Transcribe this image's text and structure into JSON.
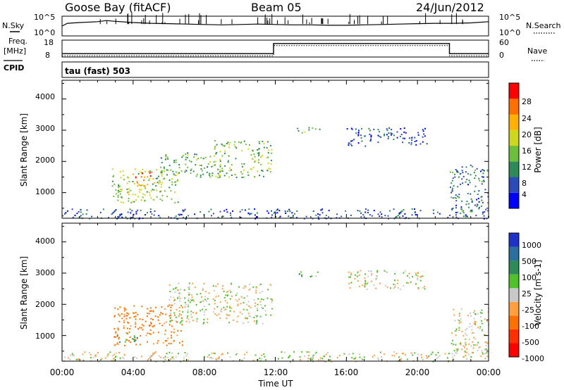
{
  "header": {
    "station": "Goose Bay (fitACF)",
    "beam": "Beam 05",
    "date": "24/Jun/2012"
  },
  "noise_panel": {
    "left_label": "N.Sky",
    "left_ticks": [
      "10^5",
      "10^0"
    ],
    "right_label": "N.Search",
    "right_ticks": [
      "10^5",
      "10^0"
    ]
  },
  "freq_panel": {
    "left_label_1": "Freq.",
    "left_label_2": "[MHz]",
    "left_ticks": [
      "18",
      "8"
    ],
    "right_label": "Nave",
    "right_ticks": [
      "60",
      "0"
    ]
  },
  "cpid_label": "CPID",
  "cpid_value": "tau (fast) 503",
  "power_panel": {
    "ylabel": "Slant Range [km]",
    "yticks": [
      "4000",
      "3000",
      "2000",
      "1000"
    ],
    "colorbar_label": "Power [dB]",
    "colorbar_ticks": [
      "28",
      "24",
      "20",
      "16",
      "12",
      "8",
      "4"
    ],
    "colorbar_colors": [
      "#0000ff",
      "#2b4cb8",
      "#2e8b57",
      "#6dbf3b",
      "#cfd61e",
      "#ffb000",
      "#ff7000",
      "#ff0000"
    ]
  },
  "velocity_panel": {
    "ylabel": "Slant Range [km]",
    "yticks": [
      "4000",
      "3000",
      "2000",
      "1000"
    ],
    "colorbar_label": "Velocity [m s-1]",
    "colorbar_ticks": [
      "1000",
      "500",
      "100",
      "25",
      "-25",
      "-100",
      "-500",
      "-1000"
    ],
    "colorbar_colors": [
      "#1e32c8",
      "#2a6f9e",
      "#2e8b57",
      "#4fc12a",
      "#c8c8c8",
      "#ffa040",
      "#ff7000",
      "#ff3000",
      "#ff0000"
    ]
  },
  "xaxis": {
    "ticks": [
      "00:00",
      "04:00",
      "08:00",
      "12:00",
      "16:00",
      "20:00",
      "00:00"
    ],
    "label": "Time UT"
  },
  "chart_data": [
    {
      "type": "line",
      "name": "noise",
      "ylabel_left": "N.Sky",
      "ylabel_right": "N.Search",
      "x_hours": [
        0,
        0.3,
        1,
        2,
        2.5,
        3,
        4,
        5,
        6,
        7,
        8,
        9,
        10,
        11,
        12,
        13,
        14,
        15,
        16,
        17,
        18,
        19,
        20,
        21,
        22,
        23,
        24
      ],
      "y_log10": [
        2.5,
        3.2,
        3.4,
        3.6,
        3.9,
        3.7,
        3.4,
        3.2,
        3.1,
        3.0,
        2.9,
        2.8,
        2.9,
        3.0,
        2.9,
        2.8,
        2.8,
        2.7,
        2.7,
        2.8,
        2.9,
        3.0,
        3.1,
        3.2,
        3.2,
        3.3,
        3.6
      ]
    },
    {
      "type": "line",
      "name": "frequency",
      "ylabel_left": "Freq. [MHz]",
      "ylabel_right": "Nave",
      "ylim_left": [
        8,
        18
      ],
      "ylim_right": [
        0,
        60
      ],
      "x_hours": [
        0,
        11.9,
        11.9,
        21.8,
        21.8,
        24
      ],
      "freq_mhz": [
        10,
        10,
        16,
        16,
        10,
        10
      ]
    },
    {
      "type": "heatmap",
      "name": "power",
      "xlabel": "Time UT",
      "ylabel": "Slant Range [km]",
      "xlim_hours": [
        0,
        24
      ],
      "ylim_km": [
        180,
        4600
      ],
      "colorbar": "Power [dB]",
      "regions": [
        {
          "t0": 2.8,
          "t1": 6.5,
          "r0": 700,
          "r1": 1800,
          "dB": 16
        },
        {
          "t0": 4.0,
          "t1": 5.2,
          "r0": 1200,
          "r1": 1700,
          "dB": 26
        },
        {
          "t0": 5.5,
          "t1": 8.5,
          "r0": 1500,
          "r1": 2300,
          "dB": 12
        },
        {
          "t0": 8.5,
          "t1": 11.8,
          "r0": 1500,
          "r1": 2700,
          "dB": 14
        },
        {
          "t0": 0,
          "t1": 24,
          "r0": 180,
          "r1": 500,
          "dB": 6
        },
        {
          "t0": 13.2,
          "t1": 14.5,
          "r0": 2900,
          "r1": 3100,
          "dB": 12
        },
        {
          "t0": 16.0,
          "t1": 20.5,
          "r0": 2500,
          "r1": 3100,
          "dB": 6
        },
        {
          "t0": 21.8,
          "t1": 24,
          "r0": 300,
          "r1": 1900,
          "dB": 8
        }
      ]
    },
    {
      "type": "heatmap",
      "name": "velocity",
      "xlabel": "Time UT",
      "ylabel": "Slant Range [km]",
      "xlim_hours": [
        0,
        24
      ],
      "ylim_km": [
        180,
        4600
      ],
      "colorbar": "Velocity [m s-1]",
      "regions": [
        {
          "t0": 2.8,
          "t1": 6.8,
          "r0": 700,
          "r1": 2000,
          "v": -150
        },
        {
          "t0": 3.0,
          "t1": 4.2,
          "r0": 800,
          "r1": 1100,
          "v": 100
        },
        {
          "t0": 6.0,
          "t1": 11.8,
          "r0": 1400,
          "r1": 2700,
          "v": 0
        },
        {
          "t0": 0,
          "t1": 24,
          "r0": 180,
          "r1": 500,
          "v": 0
        },
        {
          "t0": 13.2,
          "t1": 14.5,
          "r0": 2900,
          "r1": 3100,
          "v": 100
        },
        {
          "t0": 16.0,
          "t1": 20.5,
          "r0": 2500,
          "r1": 3100,
          "v": 0
        },
        {
          "t0": 21.8,
          "t1": 24,
          "r0": 300,
          "r1": 1900,
          "v": 0
        }
      ]
    }
  ]
}
